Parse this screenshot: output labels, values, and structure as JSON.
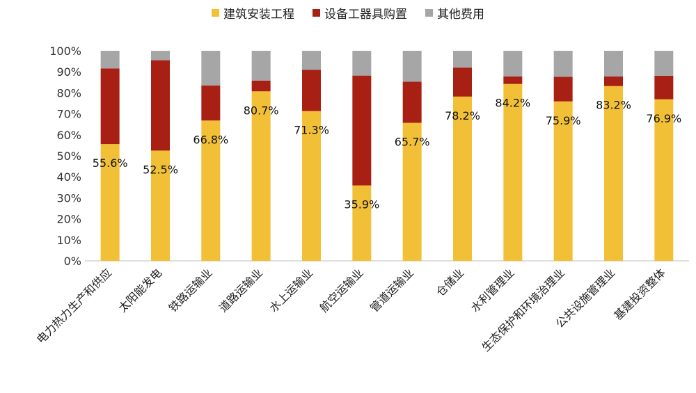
{
  "chart_data": {
    "type": "bar",
    "stacked": true,
    "categories": [
      "电力热力生产和供应",
      "太阳能发电",
      "铁路运输业",
      "道路运输业",
      "水上运输业",
      "航空运输业",
      "管道运输业",
      "仓储业",
      "水利管理业",
      "生态保护和环境治理业",
      "公共设施管理业",
      "基建投资整体"
    ],
    "series": [
      {
        "name": "建筑安装工程",
        "color": "#F2C037",
        "values": [
          55.6,
          52.5,
          66.8,
          80.7,
          71.3,
          35.9,
          65.7,
          78.2,
          84.2,
          75.9,
          83.2,
          76.9
        ]
      },
      {
        "name": "设备工器具购置",
        "color": "#A81F13",
        "values": [
          36.0,
          43.0,
          16.7,
          5.1,
          19.6,
          52.3,
          19.6,
          13.8,
          3.6,
          11.7,
          4.6,
          11.2
        ]
      },
      {
        "name": "其他费用",
        "color": "#A6A6A6",
        "values": [
          8.4,
          4.5,
          16.5,
          14.2,
          9.1,
          11.8,
          14.7,
          8.0,
          12.2,
          12.4,
          12.2,
          11.9
        ]
      }
    ],
    "data_labels": [
      "55.6%",
      "52.5%",
      "66.8%",
      "80.7%",
      "71.3%",
      "35.9%",
      "65.7%",
      "78.2%",
      "84.2%",
      "75.9%",
      "83.2%",
      "76.9%"
    ],
    "y_ticks": [
      "0%",
      "10%",
      "20%",
      "30%",
      "40%",
      "50%",
      "60%",
      "70%",
      "80%",
      "90%",
      "100%"
    ],
    "ylim": [
      0,
      100
    ],
    "legend_position": "top-center",
    "grid": false
  }
}
